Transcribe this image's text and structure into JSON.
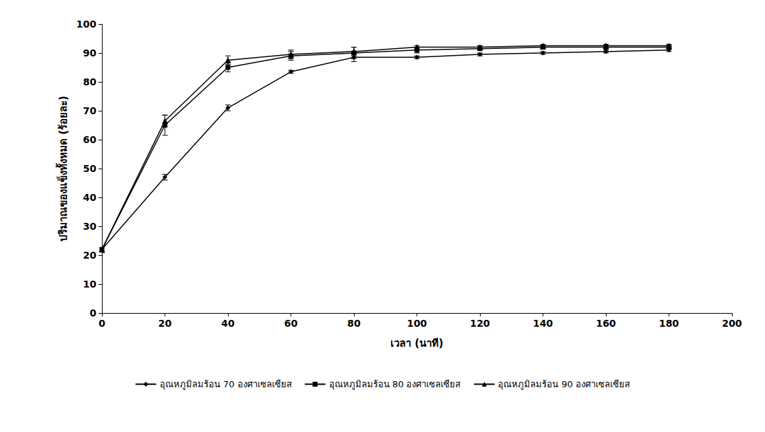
{
  "chart_data": {
    "type": "line",
    "x_label": "เวลา (นาที)",
    "y_label": "ปริมาณของแข็งทั้งหมด (ร้อยละ)",
    "x": [
      0,
      20,
      40,
      60,
      80,
      100,
      120,
      140,
      160,
      180
    ],
    "xlim": [
      0,
      200
    ],
    "xticks": [
      0,
      20,
      40,
      60,
      80,
      100,
      120,
      140,
      160,
      180,
      200
    ],
    "ylim": [
      0,
      100
    ],
    "yticks": [
      0,
      10,
      20,
      30,
      40,
      50,
      60,
      70,
      80,
      90,
      100
    ],
    "grid": false,
    "legend": "bottom",
    "series": [
      {
        "name": "อุณหภูมิลมร้อน 70 องศาเซลเซียส",
        "color": "#000000",
        "marker": "diamond",
        "values": [
          22,
          47,
          71,
          83.5,
          88.5,
          88.5,
          89.5,
          90,
          90.5,
          91
        ],
        "error": [
          1,
          1,
          1,
          0.5,
          1.5,
          0.5,
          0.5,
          0.5,
          0.5,
          0.5
        ]
      },
      {
        "name": "อุณหภูมิลมร้อน 80 องศาเซลเซียส",
        "color": "#000000",
        "marker": "square",
        "values": [
          22,
          65,
          85,
          89,
          90,
          91,
          91.5,
          92,
          92,
          92
        ],
        "error": [
          1,
          3.5,
          1.5,
          1.5,
          2,
          1,
          0.5,
          0.5,
          0.5,
          0.5
        ]
      },
      {
        "name": "อุณหภูมิลมร้อน 90 องศาเซลเซียส",
        "color": "#000000",
        "marker": "triangle",
        "values": [
          22,
          66.5,
          87.5,
          89.5,
          90.5,
          92,
          92,
          92.5,
          92.5,
          92.5
        ],
        "error": [
          1,
          2,
          1.5,
          1.5,
          1.5,
          0.5,
          0.5,
          0.5,
          0.5,
          0.5
        ]
      }
    ]
  }
}
